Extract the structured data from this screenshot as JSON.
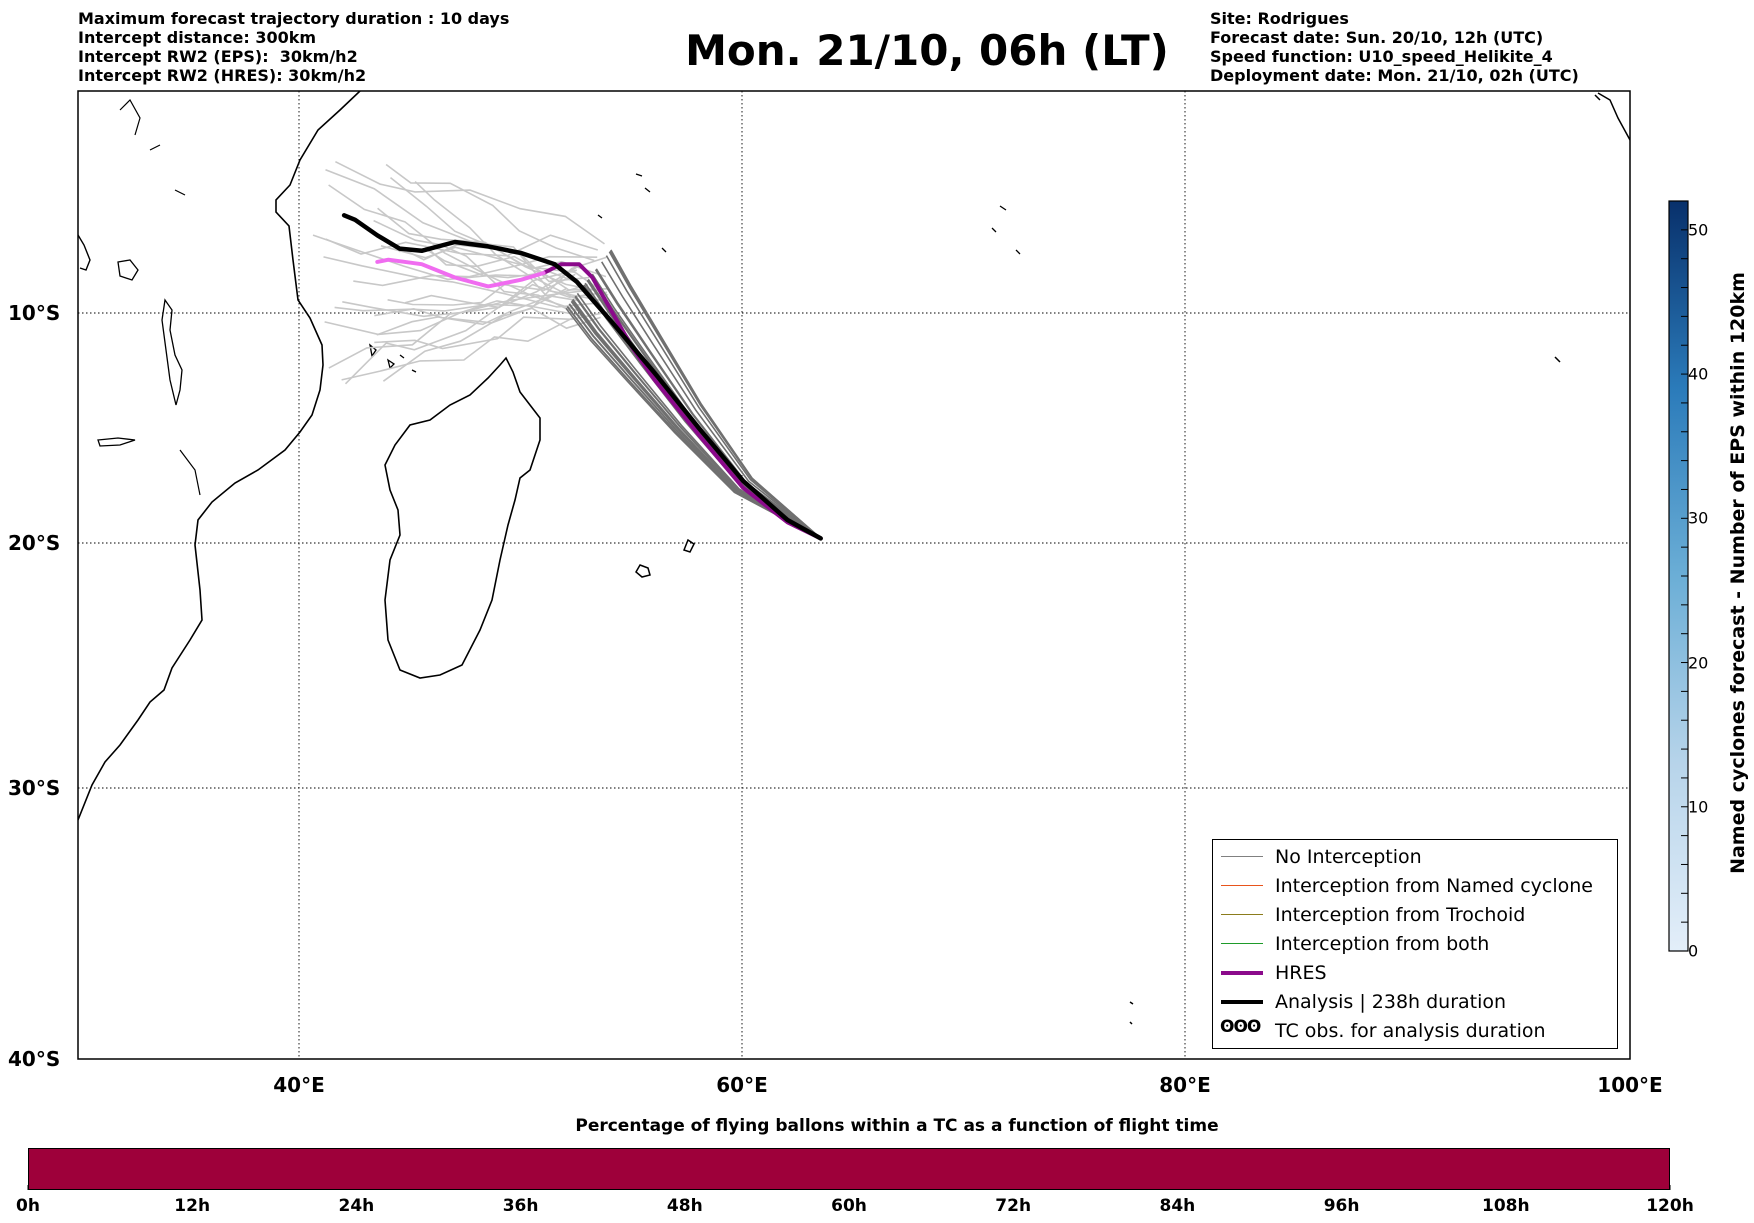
{
  "header_left": [
    "Maximum forecast trajectory duration : 10 days",
    "Intercept distance: 300km",
    "Intercept RW2 (EPS):  30km/h2",
    "Intercept RW2 (HRES): 30km/h2"
  ],
  "header_right": [
    "Site: Rodrigues",
    "Forecast date: Sun. 20/10, 12h (UTC)",
    "Speed function: U10_speed_Helikite_4",
    "Deployment date: Mon. 21/10, 02h (UTC)"
  ],
  "title": "Mon. 21/10, 06h (LT)",
  "map": {
    "lon_range": [
      30,
      100
    ],
    "lat_range": [
      -40,
      0
    ],
    "lon_ticks": [
      "40°E",
      "60°E",
      "80°E",
      "100°E"
    ],
    "lat_ticks": [
      "10°S",
      "20°S",
      "30°S",
      "40°S"
    ],
    "gridlines": true
  },
  "legend": {
    "items": [
      {
        "label": "No Interception",
        "color": "#808080"
      },
      {
        "label": "Interception from Named cyclone",
        "color": "#e8541c"
      },
      {
        "label": "Interception from Trochoid",
        "color": "#8b7c1c"
      },
      {
        "label": "Interception from both",
        "color": "#1e9b2a"
      },
      {
        "label": "HRES",
        "color": "#8b0a8b"
      },
      {
        "label": "Analysis | 238h duration",
        "color": "#000000"
      },
      {
        "label": "TC obs. for analysis duration",
        "icon": "cyclone-symbol-icon",
        "symbol": "ʘʘʘ"
      }
    ]
  },
  "colorbar": {
    "label": "Named cyclones forecast - Number of EPS within 120km",
    "ticks": [
      "0",
      "10",
      "20",
      "30",
      "40",
      "50"
    ],
    "min": 0,
    "max": 52,
    "color_low": "#e3eef9",
    "color_high": "#08306b"
  },
  "bottom": {
    "title": "Percentage of flying ballons within a TC as a function of flight time",
    "ticks": [
      "0h",
      "12h",
      "24h",
      "36h",
      "48h",
      "60h",
      "72h",
      "84h",
      "96h",
      "108h",
      "120h"
    ],
    "bar_color": "#9e003a"
  },
  "chart_data": {
    "type": "line",
    "x_unit": "longitude °E",
    "y_unit": "latitude °",
    "series": [
      {
        "name": "HRES",
        "color": "#8b0a8b",
        "points": [
          [
            63.5,
            -19.8
          ],
          [
            62,
            -19.1
          ],
          [
            60,
            -17.6
          ],
          [
            58,
            -15.3
          ],
          [
            56,
            -12.9
          ],
          [
            55,
            -11.5
          ],
          [
            54,
            -9.8
          ],
          [
            53.2,
            -8.4
          ],
          [
            52.6,
            -7.8
          ],
          [
            51.8,
            -7.8
          ],
          [
            51,
            -8.2
          ]
        ]
      },
      {
        "name": "HRES (extension)",
        "color": "#f06cf0",
        "points": [
          [
            51,
            -8.2
          ],
          [
            50,
            -8.5
          ],
          [
            48.5,
            -8.8
          ],
          [
            47,
            -8.4
          ],
          [
            45.5,
            -7.8
          ],
          [
            44,
            -7.6
          ],
          [
            43.5,
            -7.7
          ]
        ]
      },
      {
        "name": "Analysis | 238h duration",
        "color": "#000000",
        "points": [
          [
            63.5,
            -19.8
          ],
          [
            62,
            -19
          ],
          [
            60,
            -17.3
          ],
          [
            58,
            -15
          ],
          [
            56,
            -12.6
          ],
          [
            54,
            -10.3
          ],
          [
            52.5,
            -8.6
          ],
          [
            51.5,
            -7.8
          ],
          [
            50,
            -7.3
          ],
          [
            48.5,
            -7.0
          ],
          [
            47,
            -6.8
          ],
          [
            45.5,
            -7.2
          ],
          [
            44.5,
            -7.1
          ],
          [
            43.5,
            -6.5
          ],
          [
            42.5,
            -5.8
          ],
          [
            42,
            -5.6
          ]
        ]
      }
    ]
  }
}
